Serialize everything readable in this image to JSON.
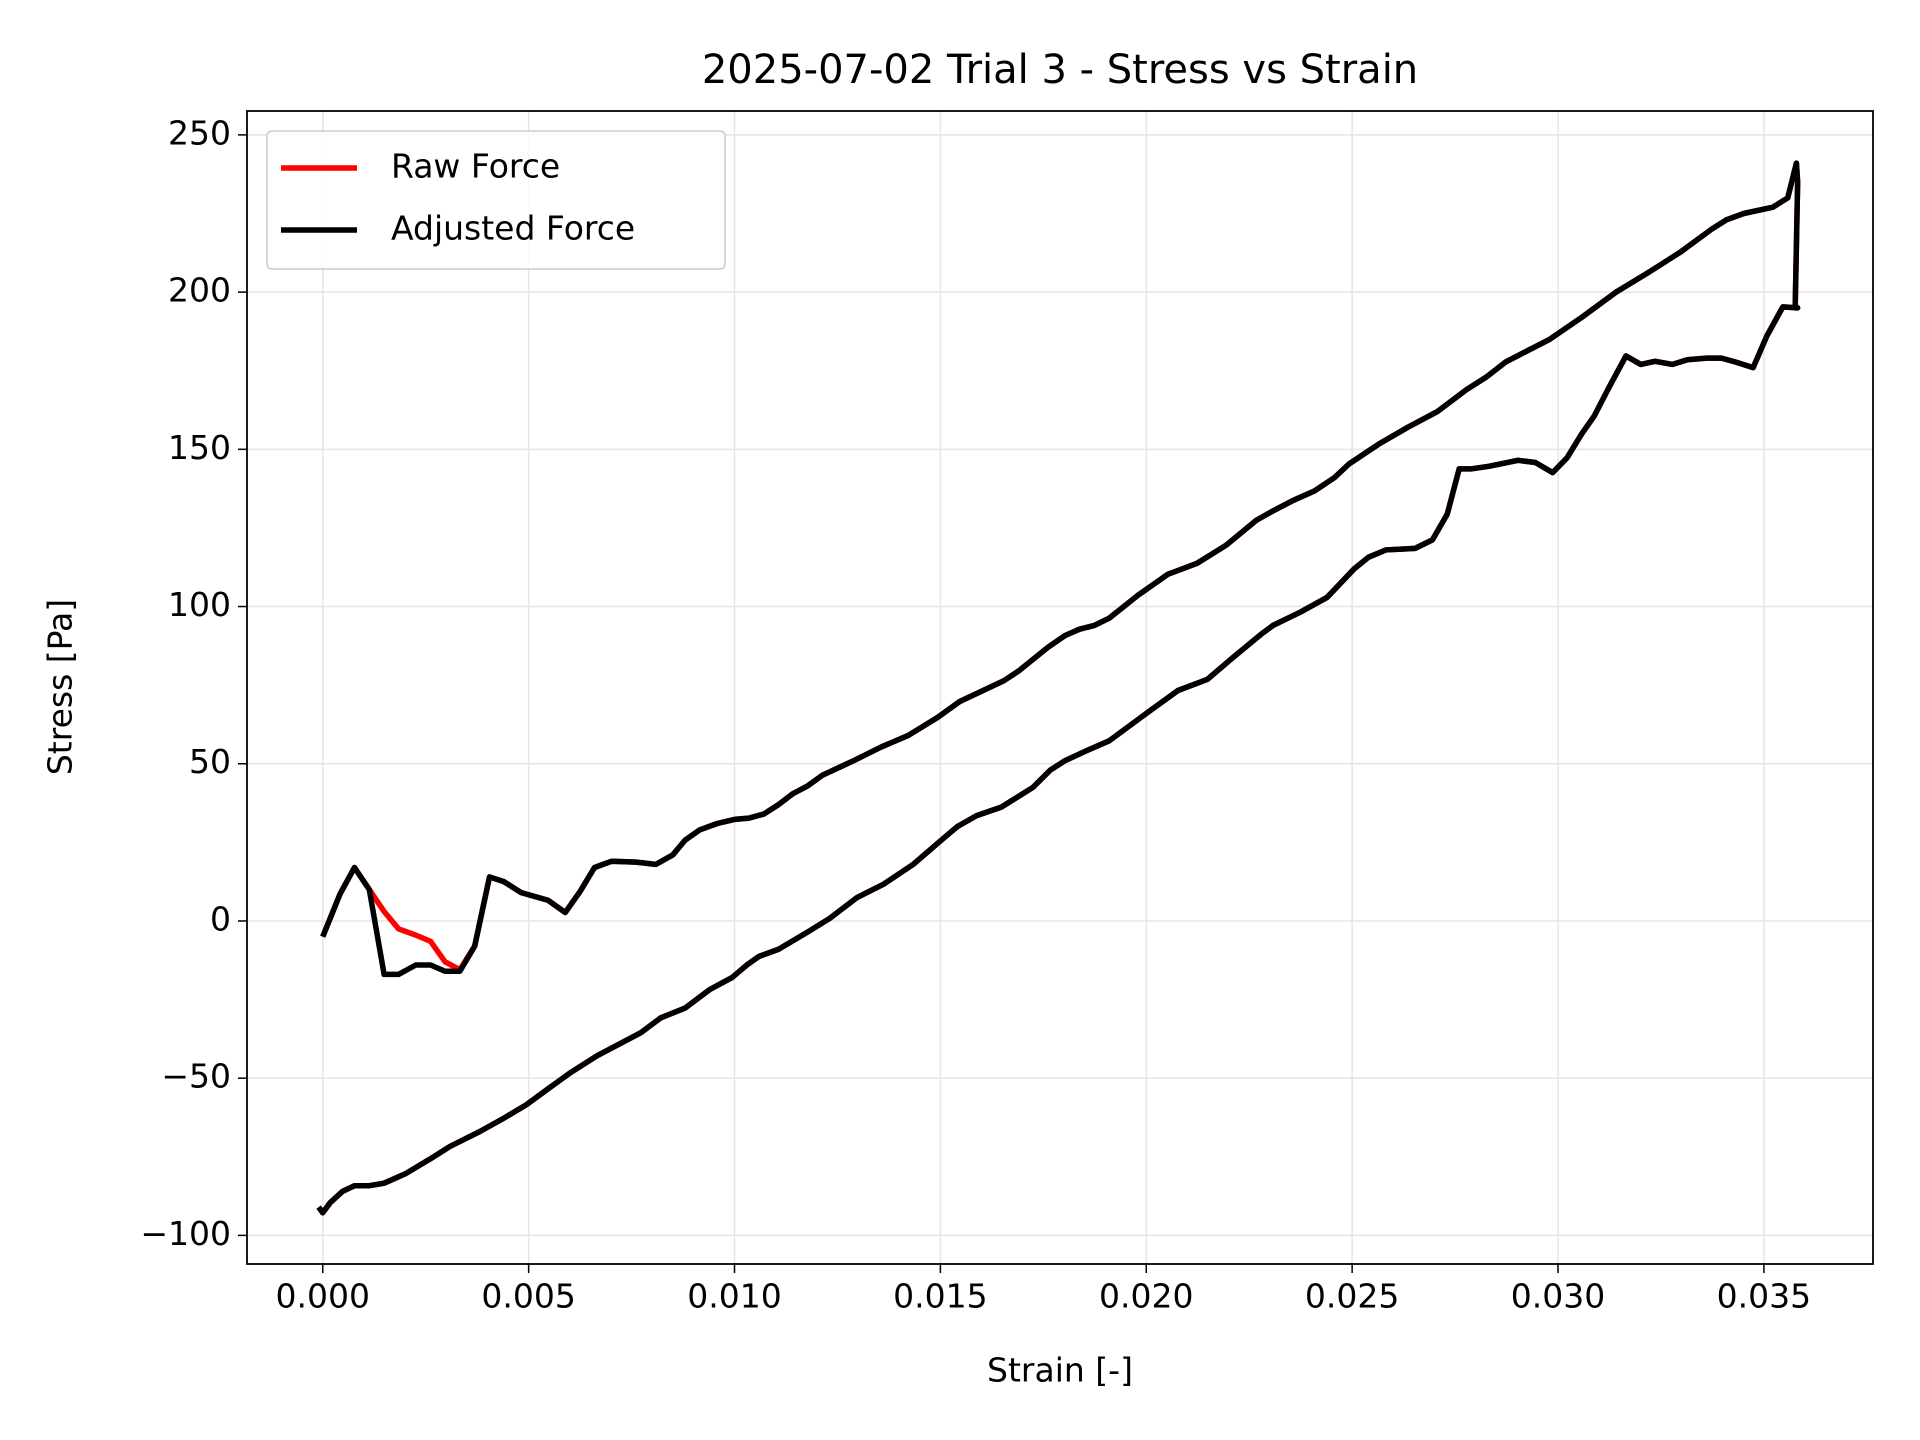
{
  "chart_data": {
    "type": "line",
    "title": "2025-07-02 Trial 3 - Stress vs Strain",
    "x_label": "Strain [-]",
    "y_label": "Stress [Pa]",
    "x": [
      0,
      0.00042,
      0.00077,
      0.00113,
      0.00149,
      0.00184,
      0.00226,
      0.00262,
      0.00297,
      0.00333,
      0.00369,
      0.00405,
      0.0044,
      0.00482,
      0.00547,
      0.00589,
      0.00625,
      0.0066,
      0.00702,
      0.00761,
      0.00809,
      0.0085,
      0.0088,
      0.00916,
      0.00958,
      0.01,
      0.01035,
      0.01071,
      0.01107,
      0.01142,
      0.01178,
      0.01214,
      0.01285,
      0.01356,
      0.01422,
      0.01493,
      0.01547,
      0.01654,
      0.0169,
      0.01761,
      0.01803,
      0.01838,
      0.01874,
      0.0191,
      0.01981,
      0.02053,
      0.02088,
      0.02124,
      0.02195,
      0.02267,
      0.02302,
      0.02356,
      0.02409,
      0.02457,
      0.02493,
      0.02564,
      0.02635,
      0.02707,
      0.02778,
      0.02826,
      0.02873,
      0.0298,
      0.03058,
      0.03141,
      0.03225,
      0.03296,
      0.03373,
      0.03409,
      0.03451,
      0.03522,
      0.03558,
      0.03579,
      0.03582,
      0.03576,
      0.03582,
      0.03546,
      0.03507,
      0.03474,
      0.03433,
      0.03397,
      0.03361,
      0.03314,
      0.03278,
      0.03236,
      0.03201,
      0.03165,
      0.03123,
      0.03088,
      0.03058,
      0.03022,
      0.02987,
      0.02945,
      0.02903,
      0.02832,
      0.0279,
      0.0276,
      0.02731,
      0.02695,
      0.02653,
      0.02582,
      0.0254,
      0.02505,
      0.02439,
      0.02374,
      0.02308,
      0.02279,
      0.02207,
      0.02148,
      0.02077,
      0.01999,
      0.0191,
      0.01856,
      0.01803,
      0.01767,
      0.01725,
      0.01648,
      0.01588,
      0.01541,
      0.01505,
      0.01434,
      0.01362,
      0.01297,
      0.01231,
      0.01178,
      0.01107,
      0.01059,
      0.0103,
      0.00994,
      0.0094,
      0.0088,
      0.00821,
      0.00773,
      0.00708,
      0.00666,
      0.00601,
      0.00547,
      0.00494,
      0.0044,
      0.00381,
      0.00309,
      0.00262,
      0.00202,
      0.00149,
      0.00113,
      0.00077,
      0.00048,
      0.00018,
      0,
      -0.0001
    ],
    "series": [
      {
        "name": "Raw Force",
        "color": "#ff0000",
        "values": [
          -5,
          8.6,
          17,
          10,
          3,
          -2.5,
          -4.5,
          -6.5,
          -13,
          -15.5,
          -8,
          14,
          12.5,
          9,
          6.6,
          2.7,
          9.4,
          17,
          19,
          18.7,
          18,
          21,
          25.7,
          29,
          31,
          32.3,
          32.7,
          34,
          37,
          40.5,
          43,
          46.4,
          50.7,
          55.3,
          59,
          64.7,
          69.8,
          76.4,
          79.5,
          87,
          90.8,
          92.8,
          94,
          96.3,
          103.7,
          110.3,
          112,
          113.8,
          119.6,
          127.4,
          130,
          133.7,
          136.8,
          141,
          145.4,
          151.6,
          157,
          162,
          169,
          173,
          177.8,
          185,
          192,
          200,
          206.7,
          212.6,
          220,
          223,
          225,
          227,
          230,
          241,
          235,
          195,
          195,
          195.3,
          186,
          176,
          177.7,
          179,
          179,
          178.5,
          177,
          178,
          177,
          179.7,
          169.5,
          160.6,
          155,
          147.3,
          142.6,
          145.8,
          146.5,
          144.6,
          143.8,
          143.8,
          129.4,
          121.2,
          118.5,
          118,
          115.7,
          112,
          102.9,
          98.2,
          94,
          91.2,
          83.4,
          76.8,
          73.3,
          65.9,
          57.3,
          54.2,
          51,
          48,
          42.5,
          36.2,
          33.5,
          30,
          26,
          18,
          11.7,
          7.4,
          0.8,
          -3.5,
          -9,
          -11.3,
          -14,
          -18,
          -21.8,
          -27.7,
          -30.8,
          -35.5,
          -40,
          -42.9,
          -48.3,
          -53.4,
          -58.5,
          -62.7,
          -67,
          -71.7,
          -75.6,
          -80.3,
          -83.4,
          -84.2,
          -84.2,
          -86,
          -89.6,
          -92.8,
          -91
        ]
      },
      {
        "name": "Adjusted Force",
        "color": "#000000",
        "values": [
          -5,
          8.6,
          17,
          10,
          -17,
          -17,
          -14,
          -14,
          -16,
          -16,
          -8,
          14,
          12.5,
          9,
          6.6,
          2.7,
          9.4,
          17,
          19,
          18.7,
          18,
          21,
          25.7,
          29,
          31,
          32.3,
          32.7,
          34,
          37,
          40.5,
          43,
          46.4,
          50.7,
          55.3,
          59,
          64.7,
          69.8,
          76.4,
          79.5,
          87,
          90.8,
          92.8,
          94,
          96.3,
          103.7,
          110.3,
          112,
          113.8,
          119.6,
          127.4,
          130,
          133.7,
          136.8,
          141,
          145.4,
          151.6,
          157,
          162,
          169,
          173,
          177.8,
          185,
          192,
          200,
          206.7,
          212.6,
          220,
          223,
          225,
          227,
          230,
          241,
          235,
          195,
          195,
          195.3,
          186,
          176,
          177.7,
          179,
          179,
          178.5,
          177,
          178,
          177,
          179.7,
          169.5,
          160.6,
          155,
          147.3,
          142.6,
          145.8,
          146.5,
          144.6,
          143.8,
          143.8,
          129.4,
          121.2,
          118.5,
          118,
          115.7,
          112,
          102.9,
          98.2,
          94,
          91.2,
          83.4,
          76.8,
          73.3,
          65.9,
          57.3,
          54.2,
          51,
          48,
          42.5,
          36.2,
          33.5,
          30,
          26,
          18,
          11.7,
          7.4,
          0.8,
          -3.5,
          -9,
          -11.3,
          -14,
          -18,
          -21.8,
          -27.7,
          -30.8,
          -35.5,
          -40,
          -42.9,
          -48.3,
          -53.4,
          -58.5,
          -62.7,
          -67,
          -71.7,
          -75.6,
          -80.3,
          -83.4,
          -84.2,
          -84.2,
          -86,
          -89.6,
          -92.8,
          -91
        ]
      }
    ],
    "xlim": [
      -0.00184,
      0.03765
    ],
    "ylim": [
      -109.1,
      257.6
    ],
    "xticks": [
      {
        "value": 0,
        "label": "0.000"
      },
      {
        "value": 0.005,
        "label": "0.005"
      },
      {
        "value": 0.01,
        "label": "0.010"
      },
      {
        "value": 0.015,
        "label": "0.015"
      },
      {
        "value": 0.02,
        "label": "0.020"
      },
      {
        "value": 0.025,
        "label": "0.025"
      },
      {
        "value": 0.03,
        "label": "0.030"
      },
      {
        "value": 0.035,
        "label": "0.035"
      }
    ],
    "yticks": [
      {
        "value": -100,
        "label": "−100"
      },
      {
        "value": -50,
        "label": "−50"
      },
      0,
      50,
      100,
      150,
      200,
      250
    ],
    "grid": true,
    "legend": "upper-left"
  }
}
